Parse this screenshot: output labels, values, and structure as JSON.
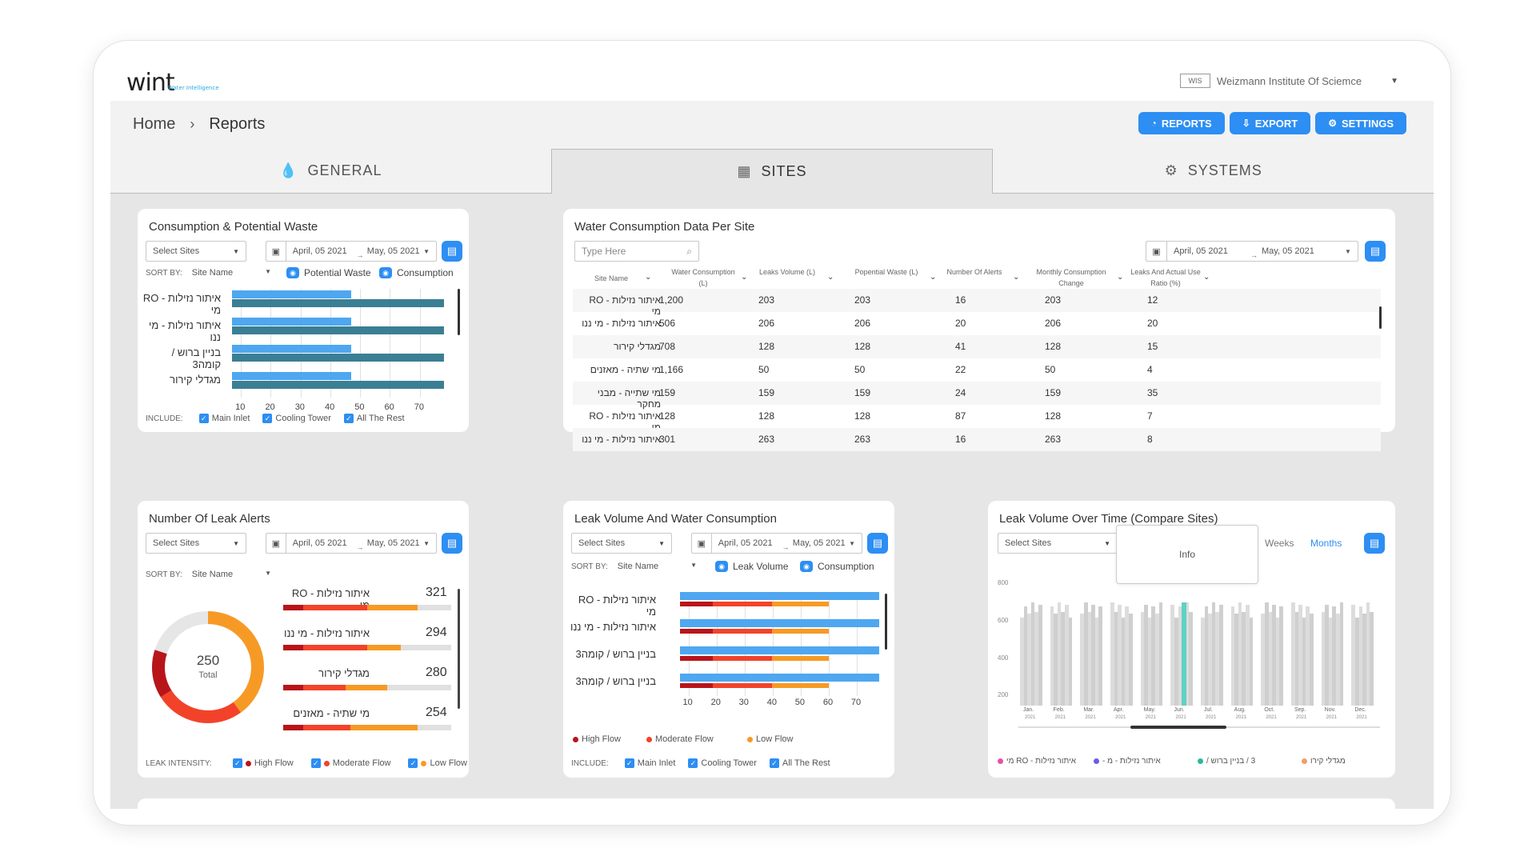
{
  "app": {
    "logo": "wint",
    "logo_sub": "Water Intelligence",
    "org_name": "Weizmann Institute Of Sciemce",
    "org_logo": "WIS"
  },
  "breadcrumb": {
    "home": "Home",
    "current": "Reports"
  },
  "header_buttons": {
    "reports": "REPORTS",
    "export": "EXPORT",
    "settings": "SETTINGS"
  },
  "tabs": [
    {
      "label": "GENERAL",
      "icon": "drop-icon"
    },
    {
      "label": "SITES",
      "icon": "building-icon"
    },
    {
      "label": "SYSTEMS",
      "icon": "gears-icon"
    }
  ],
  "colors": {
    "accent": "#2d8ef3",
    "bar_light": "#4ea7f0",
    "bar_dark": "#3a7f94",
    "high_flow": "#b8151b",
    "moderate_flow": "#f2432a",
    "low_flow": "#f79a25"
  },
  "consumption": {
    "title": "Consumption & Potential Waste",
    "select_placeholder": "Select Sites",
    "date_from": "April, 05 2021",
    "date_to": "May, 05 2021",
    "sort_label": "SORT BY:",
    "sort_value": "Site Name",
    "toggle_1": "Potential Waste",
    "toggle_2": "Consumption",
    "include_label": "INCLUDE:",
    "include": [
      "Main Inlet",
      "Cooling Tower",
      "All The Rest"
    ]
  },
  "chart_data": [
    {
      "type": "bar",
      "orientation": "horizontal",
      "categories": [
        "איתור נזילות - RO מי",
        "איתור נזילות - מי ננו",
        "בניין ברוש / קומה3",
        "מגדלי קירור"
      ],
      "series": [
        {
          "name": "Potential Waste",
          "values": [
            47,
            47,
            47,
            47
          ]
        },
        {
          "name": "Consumption",
          "values": [
            78,
            78,
            78,
            78
          ]
        }
      ],
      "xticks": [
        "10",
        "20",
        "30",
        "40",
        "50",
        "60",
        "70"
      ],
      "xlim": [
        7,
        80
      ]
    },
    {
      "type": "bar",
      "orientation": "horizontal",
      "categories": [
        "איתור נזילות - RO מי",
        "איתור נזילות - מי ננו",
        "בניין ברוש / קומה3",
        "בניין ברוש / קומה3"
      ],
      "series": [
        {
          "name": "Leak Volume",
          "values": [
            78,
            78,
            78,
            78
          ]
        },
        {
          "name": "Consumption",
          "values": [
            60,
            60,
            60,
            60
          ]
        }
      ],
      "xticks": [
        "10",
        "20",
        "30",
        "40",
        "50",
        "60",
        "70"
      ],
      "xlim": [
        7,
        80
      ]
    },
    {
      "type": "bar",
      "y_ticks": [
        "800",
        "600",
        "400",
        "200"
      ],
      "ylim": [
        150,
        800
      ],
      "months": [
        "Jan.",
        "Feb.",
        "Mar.",
        "Apr.",
        "May.",
        "Jun.",
        "Jul.",
        "Aug.",
        "Oct.",
        "Sep.",
        "Nov.",
        "Dec."
      ],
      "year": "2021",
      "highlight_index": 5,
      "highlight_value": 700
    }
  ],
  "water_table": {
    "title": "Water Consumption Data Per Site",
    "search_placeholder": "Type Here",
    "date_from": "April, 05 2021",
    "date_to": "May, 05 2021",
    "columns": [
      "Site Name",
      "Water Consumption (L)",
      "Leaks Volume (L)",
      "Popential Waste (L)",
      "Number Of Alerts",
      "Monthly Consumption Change",
      "Leaks And Actual Use Ratio (%)"
    ],
    "rows": [
      [
        "איתור נזילות - RO מי",
        "1,200",
        "203",
        "203",
        "16",
        "203",
        "12"
      ],
      [
        "איתור נזילות - מי ננו",
        "506",
        "206",
        "206",
        "20",
        "206",
        "20"
      ],
      [
        "מגדלי קירור",
        "708",
        "128",
        "128",
        "41",
        "128",
        "15"
      ],
      [
        "מי שתיה - מאזנים",
        "1,166",
        "50",
        "50",
        "22",
        "50",
        "4"
      ],
      [
        "מי שתייה - מבני מחקר",
        "159",
        "159",
        "159",
        "24",
        "159",
        "35"
      ],
      [
        "איתור נזילות - RO מי",
        "128",
        "128",
        "128",
        "87",
        "128",
        "7"
      ],
      [
        "איתור נזילות - מי ננו",
        "301",
        "263",
        "263",
        "16",
        "263",
        "8"
      ]
    ]
  },
  "leak_alerts": {
    "title": "Number Of Leak Alerts",
    "select_placeholder": "Select Sites",
    "date_from": "April, 05 2021",
    "date_to": "May, 05 2021",
    "sort_label": "SORT BY:",
    "sort_value": "Site Name",
    "total": "250",
    "total_label": "Total",
    "rows": [
      {
        "name": "איתור נזילות - RO מי",
        "value": "321",
        "segs": [
          0.12,
          0.38,
          0.3
        ]
      },
      {
        "name": "איתור נזילות - מי ננו",
        "value": "294",
        "segs": [
          0.12,
          0.38,
          0.2
        ]
      },
      {
        "name": "מגדלי קירור",
        "value": "280",
        "segs": [
          0.12,
          0.25,
          0.25
        ]
      },
      {
        "name": "מי שתיה - מאזנים",
        "value": "254",
        "segs": [
          0.12,
          0.28,
          0.4
        ]
      }
    ],
    "intensity_label": "LEAK INTENSITY:",
    "intensity": [
      "High Flow",
      "Moderate Flow",
      "Low Flow"
    ]
  },
  "leak_volume": {
    "title": "Leak Volume And Water Consumption",
    "select_placeholder": "Select Sites",
    "date_from": "April, 05 2021",
    "date_to": "May, 05 2021",
    "sort_label": "SORT BY:",
    "sort_value": "Site Name",
    "toggle_1": "Leak Volume",
    "toggle_2": "Consumption",
    "legend": [
      "High Flow",
      "Moderate Flow",
      "Low Flow"
    ],
    "include_label": "INCLUDE:",
    "include": [
      "Main Inlet",
      "Cooling Tower",
      "All The Rest"
    ]
  },
  "leak_time": {
    "title": "Leak Volume Over Time (Compare Sites)",
    "select_placeholder": "Select Sites",
    "weeks": "Weeks",
    "months": "Months",
    "tooltip": "Info",
    "legend": [
      {
        "label": "איתור נזילות - RO מי",
        "color": "#e84fa5"
      },
      {
        "label": "איתור נזילות - מ -",
        "color": "#6b5ce7"
      },
      {
        "label": "3 / בניין ברוש /",
        "color": "#2bb89b"
      },
      {
        "label": "מגדלי קירו",
        "color": "#f59b6b"
      }
    ]
  }
}
